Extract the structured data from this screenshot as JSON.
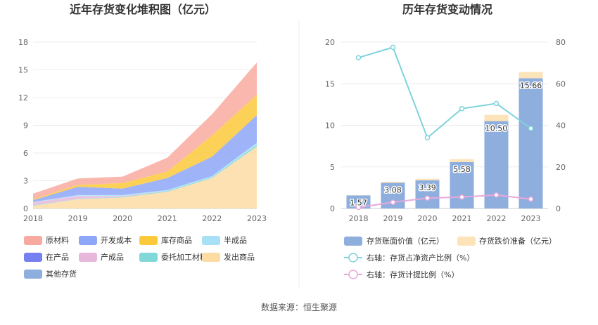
{
  "left_chart": {
    "title": "近年存货变化堆积图（亿元）",
    "chart_data": {
      "type": "area",
      "stacked": true,
      "x": [
        "2018",
        "2019",
        "2020",
        "2021",
        "2022",
        "2023"
      ],
      "ylim": [
        0,
        18
      ],
      "yticks": [
        0,
        3,
        6,
        9,
        12,
        15,
        18
      ],
      "grid": true,
      "legend_position": "bottom",
      "series": [
        {
          "name": "发出商品",
          "color": "#fddca4",
          "values": [
            0.3,
            1.0,
            1.2,
            1.8,
            3.3,
            6.7
          ]
        },
        {
          "name": "委托加工材料",
          "color": "#80d8d8",
          "values": [
            0.05,
            0.05,
            0.05,
            0.1,
            0.1,
            0.2
          ]
        },
        {
          "name": "产成品",
          "color": "#e8b8dc",
          "values": [
            0.3,
            0.3,
            0.1,
            0.0,
            0.0,
            0.0
          ]
        },
        {
          "name": "半成品",
          "color": "#a8e0f8",
          "values": [
            0.05,
            0.1,
            0.1,
            0.1,
            0.1,
            0.2
          ]
        },
        {
          "name": "开发成本",
          "color": "#8ea6f8",
          "values": [
            0.2,
            0.9,
            0.7,
            1.3,
            2.1,
            3.0
          ]
        },
        {
          "name": "库存商品",
          "color": "#fbc93a",
          "values": [
            0.1,
            0.2,
            0.6,
            0.7,
            2.3,
            2.2
          ]
        },
        {
          "name": "原材料",
          "color": "#f9aaa0",
          "values": [
            0.6,
            0.7,
            0.7,
            1.5,
            2.3,
            3.5
          ]
        }
      ]
    },
    "legend": [
      {
        "name": "原材料",
        "color": "#f9aaa0"
      },
      {
        "name": "开发成本",
        "color": "#8ea6f8"
      },
      {
        "name": "库存商品",
        "color": "#fbc93a"
      },
      {
        "name": "半成品",
        "color": "#a8e0f8"
      },
      {
        "name": "在产品",
        "color": "#7680f0"
      },
      {
        "name": "产成品",
        "color": "#e8b8dc"
      },
      {
        "name": "委托加工材料",
        "color": "#80d8d8"
      },
      {
        "name": "发出商品",
        "color": "#fddca4"
      },
      {
        "name": "其他存货",
        "color": "#8eaede"
      }
    ]
  },
  "right_chart": {
    "title": "历年存货变动情况",
    "chart_data": {
      "type": "bar",
      "categories": [
        "2018",
        "2019",
        "2020",
        "2021",
        "2022",
        "2023"
      ],
      "ylim": [
        0,
        20
      ],
      "yticks": [
        0,
        5,
        10,
        15,
        20
      ],
      "y2lim": [
        0,
        80
      ],
      "y2ticks": [
        0,
        20,
        40,
        60,
        80
      ],
      "grid": true,
      "legend_position": "bottom",
      "series": [
        {
          "name": "存货账面价值（亿元）",
          "color": "#8eaede",
          "axis": "left",
          "kind": "bar-stacked",
          "values": [
            1.57,
            3.08,
            3.39,
            5.58,
            10.5,
            15.66
          ],
          "labels": [
            "1.57",
            "3.08",
            "3.39",
            "5.58",
            "10.50",
            "15.66"
          ]
        },
        {
          "name": "存货跌价准备（亿元）",
          "color": "#fde3b8",
          "axis": "left",
          "kind": "bar-stacked",
          "values": [
            0.02,
            0.12,
            0.18,
            0.35,
            0.75,
            0.75
          ]
        },
        {
          "name": "右轴：存货占净资产比例（%）",
          "color": "#7fd3dc",
          "axis": "right",
          "kind": "line",
          "values": [
            72.5,
            77.5,
            34.0,
            48.0,
            50.5,
            38.5
          ]
        },
        {
          "name": "右轴：存货计提比例（%）",
          "color": "#e8a8dc",
          "axis": "right",
          "kind": "line",
          "values": [
            0.5,
            3.0,
            5.0,
            5.5,
            6.5,
            4.5
          ]
        }
      ]
    }
  },
  "source": "数据来源：恒生聚源"
}
